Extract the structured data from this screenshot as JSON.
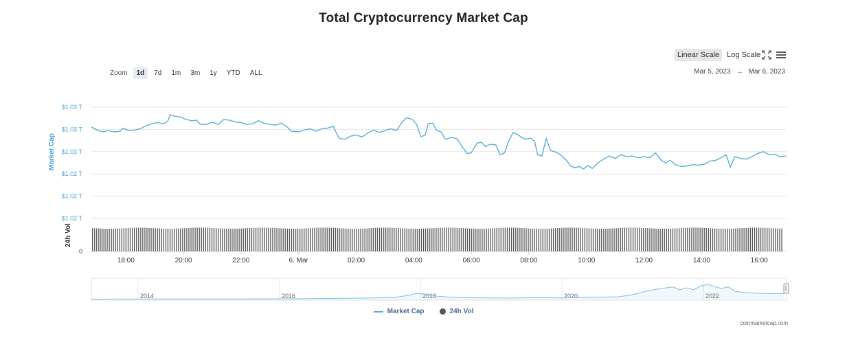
{
  "chart_data": {
    "type": "line",
    "title": "Total Cryptocurrency Market Cap",
    "ylabel": "Market Cap",
    "ylabel_volume": "24h Vol",
    "y_tick_labels": [
      "$1.03 T",
      "$1.03 T",
      "$1.03 T",
      "$1.02 T",
      "$1.02 T",
      "$1.02 T"
    ],
    "volume_tick_label": "0",
    "ylim": [
      1.015,
      1.033
    ],
    "x_tick_labels": [
      "18:00",
      "20:00",
      "22:00",
      "6. Mar",
      "02:00",
      "04:00",
      "06:00",
      "08:00",
      "10:00",
      "12:00",
      "14:00",
      "16:00"
    ],
    "xlim_hours": [
      16.8,
      40.95
    ],
    "grid": true,
    "legend_position": "bottom",
    "series": [
      {
        "name": "Market Cap",
        "color": "#5aaed6",
        "points": [
          [
            16.8,
            1.0298
          ],
          [
            17.0,
            1.0293
          ],
          [
            17.2,
            1.029
          ],
          [
            17.4,
            1.0292
          ],
          [
            17.6,
            1.029
          ],
          [
            17.8,
            1.0291
          ],
          [
            17.9,
            1.0296
          ],
          [
            18.1,
            1.0292
          ],
          [
            18.3,
            1.0293
          ],
          [
            18.5,
            1.0295
          ],
          [
            18.7,
            1.03
          ],
          [
            18.9,
            1.0303
          ],
          [
            19.1,
            1.0305
          ],
          [
            19.3,
            1.0303
          ],
          [
            19.45,
            1.0307
          ],
          [
            19.55,
            1.0318
          ],
          [
            19.7,
            1.0315
          ],
          [
            19.9,
            1.0314
          ],
          [
            20.1,
            1.031
          ],
          [
            20.3,
            1.0308
          ],
          [
            20.45,
            1.0309
          ],
          [
            20.6,
            1.0302
          ],
          [
            20.8,
            1.0302
          ],
          [
            21.0,
            1.0306
          ],
          [
            21.2,
            1.0302
          ],
          [
            21.4,
            1.031
          ],
          [
            21.6,
            1.0309
          ],
          [
            21.8,
            1.0306
          ],
          [
            22.0,
            1.0305
          ],
          [
            22.2,
            1.0302
          ],
          [
            22.4,
            1.0303
          ],
          [
            22.6,
            1.0308
          ],
          [
            22.8,
            1.0304
          ],
          [
            23.0,
            1.0302
          ],
          [
            23.2,
            1.0301
          ],
          [
            23.4,
            1.0304
          ],
          [
            23.6,
            1.0298
          ],
          [
            23.75,
            1.0291
          ],
          [
            24.0,
            1.029
          ],
          [
            24.2,
            1.0293
          ],
          [
            24.4,
            1.0295
          ],
          [
            24.6,
            1.0291
          ],
          [
            24.8,
            1.0295
          ],
          [
            25.0,
            1.0296
          ],
          [
            25.2,
            1.0299
          ],
          [
            25.4,
            1.028
          ],
          [
            25.6,
            1.0278
          ],
          [
            25.8,
            1.0283
          ],
          [
            26.0,
            1.0285
          ],
          [
            26.2,
            1.0282
          ],
          [
            26.4,
            1.0288
          ],
          [
            26.6,
            1.0293
          ],
          [
            26.8,
            1.0289
          ],
          [
            27.0,
            1.0292
          ],
          [
            27.2,
            1.0295
          ],
          [
            27.4,
            1.0292
          ],
          [
            27.6,
            1.0306
          ],
          [
            27.75,
            1.0313
          ],
          [
            27.95,
            1.031
          ],
          [
            28.1,
            1.0302
          ],
          [
            28.25,
            1.0282
          ],
          [
            28.4,
            1.0285
          ],
          [
            28.5,
            1.0303
          ],
          [
            28.65,
            1.0304
          ],
          [
            28.8,
            1.0292
          ],
          [
            28.95,
            1.029
          ],
          [
            29.1,
            1.0278
          ],
          [
            29.3,
            1.0281
          ],
          [
            29.5,
            1.0279
          ],
          [
            29.7,
            1.0265
          ],
          [
            29.85,
            1.0255
          ],
          [
            30.0,
            1.0256
          ],
          [
            30.2,
            1.0272
          ],
          [
            30.35,
            1.0273
          ],
          [
            30.5,
            1.0266
          ],
          [
            30.65,
            1.027
          ],
          [
            30.85,
            1.0269
          ],
          [
            31.0,
            1.0253
          ],
          [
            31.15,
            1.0256
          ],
          [
            31.3,
            1.0275
          ],
          [
            31.45,
            1.0289
          ],
          [
            31.6,
            1.0286
          ],
          [
            31.75,
            1.0281
          ],
          [
            31.9,
            1.0278
          ],
          [
            32.05,
            1.028
          ],
          [
            32.2,
            1.0275
          ],
          [
            32.3,
            1.0253
          ],
          [
            32.45,
            1.0251
          ],
          [
            32.6,
            1.0279
          ],
          [
            32.75,
            1.026
          ],
          [
            32.95,
            1.0257
          ],
          [
            33.1,
            1.0253
          ],
          [
            33.3,
            1.0244
          ],
          [
            33.45,
            1.0235
          ],
          [
            33.6,
            1.0232
          ],
          [
            33.75,
            1.0234
          ],
          [
            33.9,
            1.023
          ],
          [
            34.05,
            1.0236
          ],
          [
            34.2,
            1.0231
          ],
          [
            34.4,
            1.024
          ],
          [
            34.6,
            1.0246
          ],
          [
            34.8,
            1.0251
          ],
          [
            35.0,
            1.0247
          ],
          [
            35.2,
            1.0253
          ],
          [
            35.4,
            1.025
          ],
          [
            35.6,
            1.0251
          ],
          [
            35.8,
            1.0248
          ],
          [
            36.0,
            1.025
          ],
          [
            36.2,
            1.0248
          ],
          [
            36.4,
            1.0256
          ],
          [
            36.6,
            1.0244
          ],
          [
            36.75,
            1.024
          ],
          [
            36.9,
            1.0244
          ],
          [
            37.1,
            1.0237
          ],
          [
            37.3,
            1.0234
          ],
          [
            37.5,
            1.0235
          ],
          [
            37.7,
            1.0237
          ],
          [
            37.9,
            1.0236
          ],
          [
            38.1,
            1.0238
          ],
          [
            38.3,
            1.0243
          ],
          [
            38.5,
            1.0244
          ],
          [
            38.7,
            1.0249
          ],
          [
            38.85,
            1.0253
          ],
          [
            39.0,
            1.0233
          ],
          [
            39.15,
            1.025
          ],
          [
            39.35,
            1.0247
          ],
          [
            39.55,
            1.0246
          ],
          [
            39.75,
            1.025
          ],
          [
            39.95,
            1.0255
          ],
          [
            40.15,
            1.0258
          ],
          [
            40.35,
            1.0253
          ],
          [
            40.55,
            1.0254
          ],
          [
            40.7,
            1.025
          ],
          [
            40.95,
            1.0251
          ]
        ]
      },
      {
        "name": "24h Vol",
        "color": "#555555"
      }
    ]
  },
  "navigator": {
    "year_labels": [
      "2014",
      "2016",
      "2018",
      "2020",
      "2022"
    ],
    "points": [
      [
        0,
        0.02
      ],
      [
        0.1,
        0.03
      ],
      [
        0.2,
        0.03
      ],
      [
        0.3,
        0.04
      ],
      [
        0.35,
        0.06
      ],
      [
        0.4,
        0.08
      ],
      [
        0.44,
        0.12
      ],
      [
        0.46,
        0.25
      ],
      [
        0.47,
        0.35
      ],
      [
        0.48,
        0.3
      ],
      [
        0.5,
        0.18
      ],
      [
        0.53,
        0.1
      ],
      [
        0.6,
        0.08
      ],
      [
        0.65,
        0.1
      ],
      [
        0.68,
        0.09
      ],
      [
        0.72,
        0.12
      ],
      [
        0.76,
        0.15
      ],
      [
        0.78,
        0.25
      ],
      [
        0.8,
        0.45
      ],
      [
        0.82,
        0.6
      ],
      [
        0.84,
        0.7
      ],
      [
        0.85,
        0.55
      ],
      [
        0.86,
        0.65
      ],
      [
        0.87,
        0.55
      ],
      [
        0.88,
        0.75
      ],
      [
        0.89,
        0.85
      ],
      [
        0.9,
        0.72
      ],
      [
        0.91,
        0.62
      ],
      [
        0.92,
        0.7
      ],
      [
        0.93,
        0.45
      ],
      [
        0.94,
        0.4
      ],
      [
        0.96,
        0.35
      ],
      [
        0.98,
        0.33
      ],
      [
        1.0,
        0.34
      ]
    ]
  },
  "toolbar": {
    "linear_scale_label": "Linear Scale",
    "log_scale_label": "Log Scale",
    "fullscreen_icon": "expand-icon",
    "menu_icon": "hamburger-menu-icon"
  },
  "zoom": {
    "label": "Zoom",
    "options": [
      "1d",
      "7d",
      "1m",
      "3m",
      "1y",
      "YTD",
      "ALL"
    ],
    "selected": "1d"
  },
  "range": {
    "from": "Mar 5, 2023",
    "arrow": "→",
    "to": "Mar 6, 2023"
  },
  "legend": {
    "market_cap": "Market Cap",
    "volume": "24h Vol"
  },
  "credits": "coinmarketcap.com",
  "colors": {
    "line": "#5aaed6",
    "axis_label": "#4ea5d9",
    "volume_bar": "#555555",
    "grid": "#e6e6e6"
  }
}
